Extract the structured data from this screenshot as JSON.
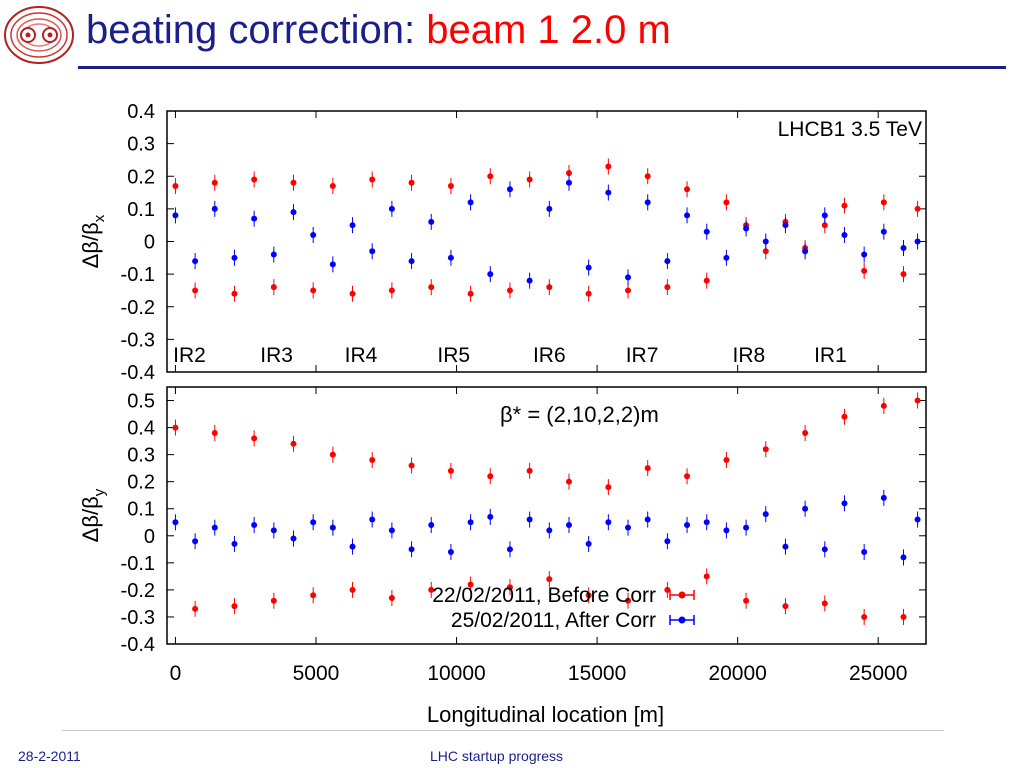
{
  "slide": {
    "title_prefix": "beating correction: ",
    "title_accent": "beam 1  2.0 m",
    "footer_date": "28-2-2011",
    "footer_center": "LHC startup progress",
    "logo": "lhc-logo"
  },
  "colors": {
    "title": "#1b1f8a",
    "accent": "#ff0000",
    "before": "#ff0000",
    "after": "#0000ff"
  },
  "chart_data": [
    {
      "type": "scatter",
      "ylabel": "Δβ/βx",
      "ylim": [
        -0.4,
        0.4
      ],
      "yticks": [
        "0.4",
        "0.3",
        "0.2",
        "0.1",
        "0",
        "-0.1",
        "-0.2",
        "-0.3",
        "-0.4"
      ],
      "xlim": [
        -300,
        26700
      ],
      "annotation": "LHCB1 3.5 TeV",
      "ir_labels": [
        {
          "label": "IR2",
          "x": 500
        },
        {
          "label": "IR3",
          "x": 3600
        },
        {
          "label": "IR4",
          "x": 6600
        },
        {
          "label": "IR5",
          "x": 9900
        },
        {
          "label": "IR6",
          "x": 13300
        },
        {
          "label": "IR7",
          "x": 16600
        },
        {
          "label": "IR8",
          "x": 20400
        },
        {
          "label": "IR1",
          "x": 23300
        }
      ],
      "series": [
        {
          "name": "22/02/2011, Before Corr",
          "color": "#ff0000",
          "x": [
            0,
            700,
            1400,
            2100,
            2800,
            3500,
            4200,
            4900,
            5600,
            6300,
            7000,
            7700,
            8400,
            9100,
            9800,
            10500,
            11200,
            11900,
            12600,
            13300,
            14000,
            14700,
            15400,
            16100,
            16800,
            17500,
            18200,
            18900,
            19600,
            20300,
            21000,
            21700,
            22400,
            23100,
            23800,
            24500,
            25200,
            25900,
            26400
          ],
          "y": [
            0.17,
            -0.15,
            0.18,
            -0.16,
            0.19,
            -0.14,
            0.18,
            -0.15,
            0.17,
            -0.16,
            0.19,
            -0.15,
            0.18,
            -0.14,
            0.17,
            -0.16,
            0.2,
            -0.15,
            0.19,
            -0.14,
            0.21,
            -0.16,
            0.23,
            -0.15,
            0.2,
            -0.14,
            0.16,
            -0.12,
            0.12,
            0.05,
            -0.03,
            0.06,
            -0.02,
            0.05,
            0.11,
            -0.09,
            0.12,
            -0.1,
            0.1
          ]
        },
        {
          "name": "25/02/2011, After Corr",
          "color": "#0000ff",
          "x": [
            0,
            700,
            1400,
            2100,
            2800,
            3500,
            4200,
            4900,
            5600,
            6300,
            7000,
            7700,
            8400,
            9100,
            9800,
            10500,
            11200,
            11900,
            12600,
            13300,
            14000,
            14700,
            15400,
            16100,
            16800,
            17500,
            18200,
            18900,
            19600,
            20300,
            21000,
            21700,
            22400,
            23100,
            23800,
            24500,
            25200,
            25900,
            26400
          ],
          "y": [
            0.08,
            -0.06,
            0.1,
            -0.05,
            0.07,
            -0.04,
            0.09,
            0.02,
            -0.07,
            0.05,
            -0.03,
            0.1,
            -0.06,
            0.06,
            -0.05,
            0.12,
            -0.1,
            0.16,
            -0.12,
            0.1,
            0.18,
            -0.08,
            0.15,
            -0.11,
            0.12,
            -0.06,
            0.08,
            0.03,
            -0.05,
            0.04,
            0.0,
            0.05,
            -0.03,
            0.08,
            0.02,
            -0.04,
            0.03,
            -0.02,
            0.0
          ]
        }
      ]
    },
    {
      "type": "scatter",
      "ylabel": "Δβ/βy",
      "ylim": [
        -0.4,
        0.55
      ],
      "yticks": [
        "0.5",
        "0.4",
        "0.3",
        "0.2",
        "0.1",
        "0",
        "-0.1",
        "-0.2",
        "-0.3",
        "-0.4"
      ],
      "xticks": [
        "0",
        "5000",
        "10000",
        "15000",
        "20000",
        "25000"
      ],
      "xlim": [
        -300,
        26700
      ],
      "xlabel": "Longitudinal location [m]",
      "annotation": "β* = (2,10,2,2)m",
      "legend_position": "bottom-center",
      "series": [
        {
          "name": "22/02/2011, Before Corr",
          "color": "#ff0000",
          "x": [
            0,
            700,
            1400,
            2100,
            2800,
            3500,
            4200,
            4900,
            5600,
            6300,
            7000,
            7700,
            8400,
            9100,
            9800,
            10500,
            11200,
            11900,
            12600,
            13300,
            14000,
            14700,
            15400,
            16100,
            16800,
            17500,
            18200,
            18900,
            19600,
            20300,
            21000,
            21700,
            22400,
            23100,
            23800,
            24500,
            25200,
            25900,
            26400
          ],
          "y": [
            0.4,
            -0.27,
            0.38,
            -0.26,
            0.36,
            -0.24,
            0.34,
            -0.22,
            0.3,
            -0.2,
            0.28,
            -0.23,
            0.26,
            -0.2,
            0.24,
            -0.18,
            0.22,
            -0.19,
            0.24,
            -0.16,
            0.2,
            -0.22,
            0.18,
            -0.24,
            0.25,
            -0.2,
            0.22,
            -0.15,
            0.28,
            -0.24,
            0.32,
            -0.26,
            0.38,
            -0.25,
            0.44,
            -0.3,
            0.48,
            -0.3,
            0.5
          ]
        },
        {
          "name": "25/02/2011, After Corr",
          "color": "#0000ff",
          "x": [
            0,
            700,
            1400,
            2100,
            2800,
            3500,
            4200,
            4900,
            5600,
            6300,
            7000,
            7700,
            8400,
            9100,
            9800,
            10500,
            11200,
            11900,
            12600,
            13300,
            14000,
            14700,
            15400,
            16100,
            16800,
            17500,
            18200,
            18900,
            19600,
            20300,
            21000,
            21700,
            22400,
            23100,
            23800,
            24500,
            25200,
            25900,
            26400
          ],
          "y": [
            0.05,
            -0.02,
            0.03,
            -0.03,
            0.04,
            0.02,
            -0.01,
            0.05,
            0.03,
            -0.04,
            0.06,
            0.02,
            -0.05,
            0.04,
            -0.06,
            0.05,
            0.07,
            -0.05,
            0.06,
            0.02,
            0.04,
            -0.03,
            0.05,
            0.03,
            0.06,
            -0.02,
            0.04,
            0.05,
            0.02,
            0.03,
            0.08,
            -0.04,
            0.1,
            -0.05,
            0.12,
            -0.06,
            0.14,
            -0.08,
            0.06
          ]
        }
      ]
    }
  ]
}
